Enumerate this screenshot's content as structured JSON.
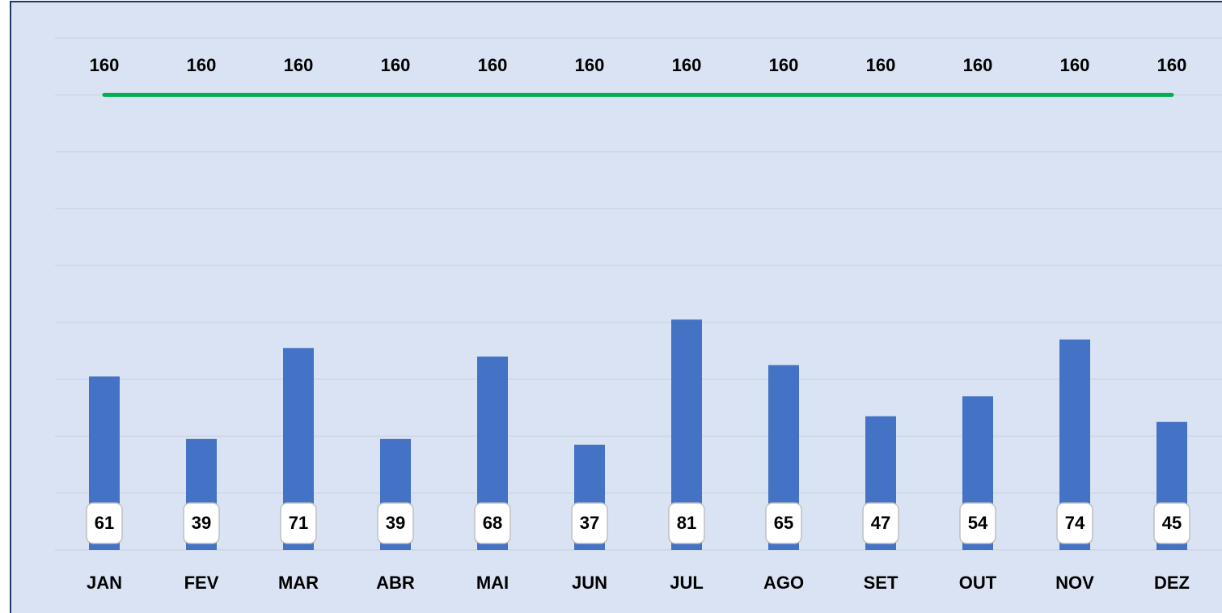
{
  "chart_data": {
    "type": "bar",
    "categories": [
      "JAN",
      "FEV",
      "MAR",
      "ABR",
      "MAI",
      "JUN",
      "JUL",
      "AGO",
      "SET",
      "OUT",
      "NOV",
      "DEZ"
    ],
    "series": [
      {
        "type": "bar",
        "color": "#4472c4",
        "values": [
          61,
          39,
          71,
          39,
          68,
          37,
          81,
          65,
          47,
          54,
          74,
          45
        ]
      },
      {
        "type": "line",
        "color": "#00b050",
        "values": [
          160,
          160,
          160,
          160,
          160,
          160,
          160,
          160,
          160,
          160,
          160,
          160
        ]
      }
    ],
    "ylim": [
      0,
      180
    ],
    "yticks": [
      0,
      20,
      40,
      60,
      80,
      100,
      120,
      140,
      160,
      180
    ],
    "grid": true
  }
}
